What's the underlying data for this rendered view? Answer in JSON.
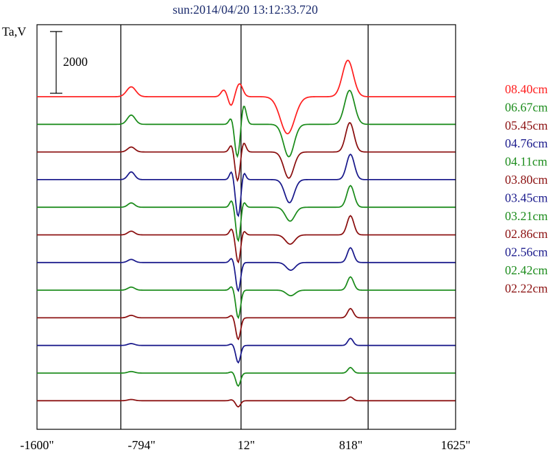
{
  "chart_data": {
    "type": "line",
    "title": "sun:2014/04/20 13:12:33.720",
    "ylabel": "Ta,V",
    "scale_bar_label": "2000",
    "scale_bar_value": 2000,
    "x_ticks": [
      -1600,
      -794,
      12,
      818,
      1625
    ],
    "x_tick_labels": [
      "-1600\"",
      "-794\"",
      "12\"",
      "818\"",
      "1625\""
    ],
    "xlim": [
      -1600,
      1625
    ],
    "disk_edges_x": [
      -954,
      -28,
      951
    ],
    "series": [
      {
        "name": "08.40cm",
        "color": "#ff2020",
        "baseline": 0,
        "features": [
          [
            -874,
            320,
            35
          ],
          [
            -160,
            220,
            22
          ],
          [
            -105,
            -300,
            20
          ],
          [
            -40,
            420,
            25
          ],
          [
            330,
            -1200,
            55
          ],
          [
            795,
            1180,
            42
          ]
        ]
      },
      {
        "name": "06.67cm",
        "color": "#1c8c1c",
        "baseline": 1,
        "features": [
          [
            -874,
            300,
            30
          ],
          [
            -100,
            260,
            18
          ],
          [
            -55,
            -1100,
            22
          ],
          [
            -10,
            700,
            20
          ],
          [
            340,
            -1050,
            40
          ],
          [
            808,
            1100,
            38
          ]
        ]
      },
      {
        "name": "05.45cm",
        "color": "#8b1010",
        "baseline": 2,
        "features": [
          [
            -874,
            160,
            28
          ],
          [
            -100,
            250,
            18
          ],
          [
            -55,
            -950,
            20
          ],
          [
            -10,
            340,
            18
          ],
          [
            340,
            -850,
            38
          ],
          [
            810,
            950,
            32
          ]
        ]
      },
      {
        "name": "04.76cm",
        "color": "#1a1a8c",
        "baseline": 3,
        "features": [
          [
            -874,
            250,
            26
          ],
          [
            -100,
            280,
            16
          ],
          [
            -50,
            -1200,
            20
          ],
          [
            -10,
            300,
            16
          ],
          [
            345,
            -750,
            36
          ],
          [
            815,
            820,
            30
          ]
        ]
      },
      {
        "name": "04.11cm",
        "color": "#1c8c1c",
        "baseline": 4,
        "features": [
          [
            -874,
            140,
            26
          ],
          [
            -100,
            220,
            16
          ],
          [
            -50,
            -1100,
            18
          ],
          [
            -10,
            200,
            16
          ],
          [
            350,
            -450,
            36
          ],
          [
            815,
            700,
            28
          ]
        ]
      },
      {
        "name": "03.80cm",
        "color": "#8b1010",
        "baseline": 5,
        "features": [
          [
            -874,
            120,
            26
          ],
          [
            -100,
            200,
            16
          ],
          [
            -50,
            -900,
            18
          ],
          [
            -10,
            150,
            16
          ],
          [
            350,
            -300,
            36
          ],
          [
            815,
            620,
            26
          ]
        ]
      },
      {
        "name": "03.45cm",
        "color": "#1a1a8c",
        "baseline": 6,
        "features": [
          [
            -874,
            100,
            26
          ],
          [
            -100,
            140,
            16
          ],
          [
            -50,
            -920,
            18
          ],
          [
            355,
            -250,
            34
          ],
          [
            815,
            480,
            24
          ]
        ]
      },
      {
        "name": "03.21cm",
        "color": "#1c8c1c",
        "baseline": 7,
        "features": [
          [
            -874,
            100,
            26
          ],
          [
            -100,
            120,
            16
          ],
          [
            -50,
            -900,
            18
          ],
          [
            355,
            -180,
            34
          ],
          [
            815,
            430,
            24
          ]
        ]
      },
      {
        "name": "02.86cm",
        "color": "#8b1010",
        "baseline": 8,
        "features": [
          [
            -874,
            80,
            26
          ],
          [
            -100,
            80,
            16
          ],
          [
            -50,
            -700,
            18
          ],
          [
            815,
            300,
            22
          ]
        ]
      },
      {
        "name": "02.56cm",
        "color": "#1a1a8c",
        "baseline": 9,
        "features": [
          [
            -874,
            60,
            26
          ],
          [
            -100,
            50,
            16
          ],
          [
            -50,
            -560,
            18
          ],
          [
            815,
            230,
            20
          ]
        ]
      },
      {
        "name": "02.42cm",
        "color": "#1c8c1c",
        "baseline": 10,
        "features": [
          [
            -874,
            50,
            26
          ],
          [
            -100,
            40,
            16
          ],
          [
            -50,
            -420,
            18
          ],
          [
            815,
            180,
            20
          ]
        ]
      },
      {
        "name": "02.22cm",
        "color": "#8b1010",
        "baseline": 11,
        "features": [
          [
            -874,
            40,
            26
          ],
          [
            -100,
            30,
            16
          ],
          [
            -50,
            -200,
            18
          ],
          [
            815,
            120,
            20
          ]
        ]
      }
    ]
  }
}
